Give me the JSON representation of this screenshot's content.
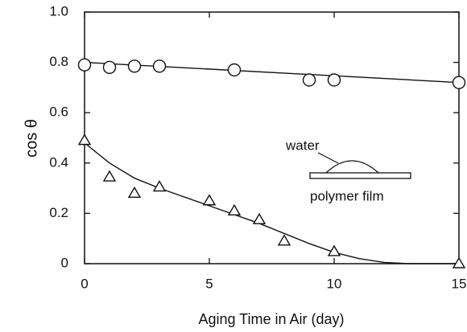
{
  "chart_data": {
    "type": "scatter",
    "x_label": "Aging Time in Air (day)",
    "y_label": "cos θ",
    "annotations": [
      "water",
      "polymer film"
    ],
    "xlim": [
      0,
      15
    ],
    "xticks": [
      0,
      5,
      10,
      15
    ],
    "ylim": [
      0,
      1
    ],
    "yticks": [
      0,
      0.2,
      0.4,
      0.6,
      0.8,
      {
        "value": 1,
        "label": "1.0"
      }
    ],
    "color": "#111111",
    "series": [
      {
        "marker": "circle",
        "x": [
          0,
          1,
          2,
          3,
          6,
          9,
          10,
          15
        ],
        "values": [
          0.79,
          0.78,
          0.785,
          0.785,
          0.77,
          0.73,
          0.73,
          0.72
        ]
      },
      {
        "marker": "triangle",
        "x": [
          0,
          1,
          2,
          3,
          5,
          6,
          7,
          8,
          10,
          15
        ],
        "values": [
          0.49,
          0.345,
          0.28,
          0.305,
          0.25,
          0.21,
          0.175,
          0.09,
          0.048,
          0
        ]
      },
      {
        "marker": "line",
        "x": [
          0,
          15
        ],
        "values": [
          0.8,
          0.72
        ]
      },
      {
        "marker": "line",
        "x": [
          0,
          1,
          2,
          3,
          5,
          7,
          9,
          10,
          11,
          12,
          13,
          15
        ],
        "values": [
          0.48,
          0.4,
          0.34,
          0.3,
          0.23,
          0.16,
          0.08,
          0.045,
          0.02,
          0.005,
          0,
          0
        ]
      }
    ]
  }
}
